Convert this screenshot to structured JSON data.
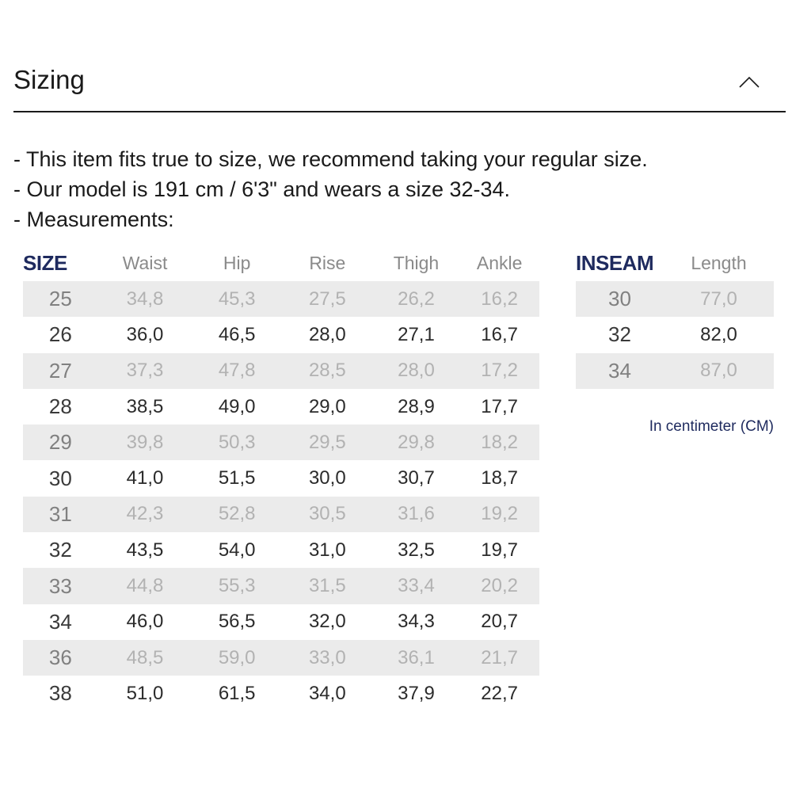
{
  "section": {
    "title": "Sizing",
    "toggle_icon": "chevron-up-icon"
  },
  "notes": [
    "- This item fits true to size, we recommend taking your regular size.",
    "- Our model is 191 cm / 6'3\" and wears a size 32-34.",
    "- Measurements:"
  ],
  "size_table": {
    "headers": [
      "SIZE",
      "Waist",
      "Hip",
      "Rise",
      "Thigh",
      "Ankle"
    ],
    "rows": [
      [
        "25",
        "34,8",
        "45,3",
        "27,5",
        "26,2",
        "16,2"
      ],
      [
        "26",
        "36,0",
        "46,5",
        "28,0",
        "27,1",
        "16,7"
      ],
      [
        "27",
        "37,3",
        "47,8",
        "28,5",
        "28,0",
        "17,2"
      ],
      [
        "28",
        "38,5",
        "49,0",
        "29,0",
        "28,9",
        "17,7"
      ],
      [
        "29",
        "39,8",
        "50,3",
        "29,5",
        "29,8",
        "18,2"
      ],
      [
        "30",
        "41,0",
        "51,5",
        "30,0",
        "30,7",
        "18,7"
      ],
      [
        "31",
        "42,3",
        "52,8",
        "30,5",
        "31,6",
        "19,2"
      ],
      [
        "32",
        "43,5",
        "54,0",
        "31,0",
        "32,5",
        "19,7"
      ],
      [
        "33",
        "44,8",
        "55,3",
        "31,5",
        "33,4",
        "20,2"
      ],
      [
        "34",
        "46,0",
        "56,5",
        "32,0",
        "34,3",
        "20,7"
      ],
      [
        "36",
        "48,5",
        "59,0",
        "33,0",
        "36,1",
        "21,7"
      ],
      [
        "38",
        "51,0",
        "61,5",
        "34,0",
        "37,9",
        "22,7"
      ]
    ]
  },
  "inseam_table": {
    "headers": [
      "INSEAM",
      "Length"
    ],
    "rows": [
      [
        "30",
        "77,0"
      ],
      [
        "32",
        "82,0"
      ],
      [
        "34",
        "87,0"
      ]
    ]
  },
  "unit_note": "In centimeter (CM)",
  "colors": {
    "header_accent": "#1e2a5e",
    "row_shade": "#ebebeb"
  }
}
